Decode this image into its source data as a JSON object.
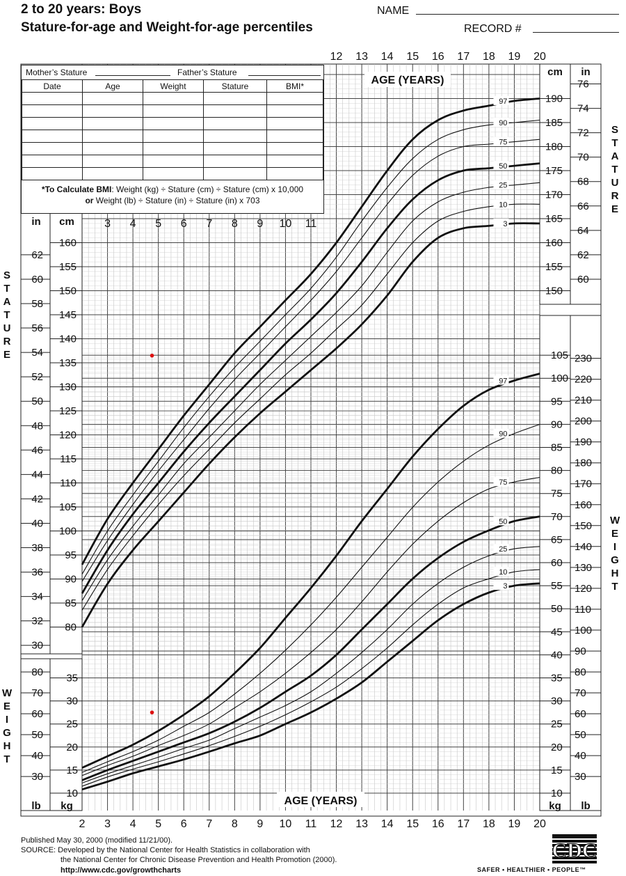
{
  "header": {
    "title_line1": "2 to 20 years: Boys",
    "title_line2": "Stature-for-age and Weight-for-age percentiles",
    "name_label": "NAME",
    "record_label": "RECORD #"
  },
  "record_table": {
    "mothers_stature": "Mother’s Stature",
    "fathers_stature": "Father’s Stature",
    "columns": [
      "Date",
      "Age",
      "Weight",
      "Stature",
      "BMI*"
    ],
    "bmi_line1_bold": "*To Calculate BMI",
    "bmi_line1_rest": ": Weight (kg) ÷ Stature (cm) ÷ Stature (cm) x 10,000",
    "bmi_line2_bold": "or",
    "bmi_line2_rest": " Weight (lb) ÷ Stature (in) ÷ Stature (in) x 703"
  },
  "side_labels": {
    "stature": "STATURE",
    "weight": "WEIGHT"
  },
  "footer": {
    "published": "Published May 30, 2000 (modified 11/21/00).",
    "source_line1": "SOURCE: Developed by the National Center for Health Statistics in collaboration with",
    "source_line2": "the National Center for Chronic Disease Prevention and Health Promotion (2000).",
    "url": "http://www.cdc.gov/growthcharts",
    "logo_text": "CDC",
    "slogan": "SAFER • HEALTHIER • PEOPLE™"
  },
  "chart_data": {
    "type": "line",
    "title": "Stature-for-age and Weight-for-age percentiles",
    "xlabel": "AGE (YEARS)",
    "x_ticks": [
      2,
      3,
      4,
      5,
      6,
      7,
      8,
      9,
      10,
      11,
      12,
      13,
      14,
      15,
      16,
      17,
      18,
      19,
      20
    ],
    "xlim": [
      2,
      20
    ],
    "grid": true,
    "unit_labels": {
      "in": "in",
      "cm": "cm",
      "lb": "lb",
      "kg": "kg"
    },
    "stature": {
      "ylabel": "STATURE",
      "unit": "cm",
      "ylim": [
        75,
        195
      ],
      "cm_ticks_left": [
        80,
        85,
        90,
        95,
        100,
        105,
        110,
        115,
        120,
        125,
        130,
        135,
        140,
        145,
        150,
        155,
        160
      ],
      "in_ticks_left": [
        30,
        32,
        34,
        36,
        38,
        40,
        42,
        44,
        46,
        48,
        50,
        52,
        54,
        56,
        58,
        60,
        62
      ],
      "cm_ticks_right": [
        150,
        155,
        160,
        165,
        170,
        175,
        180,
        185,
        190
      ],
      "in_ticks_right": [
        60,
        62,
        64,
        66,
        68,
        70,
        72,
        74,
        76
      ],
      "ages": [
        2,
        3,
        4,
        5,
        6,
        7,
        8,
        9,
        10,
        11,
        12,
        13,
        14,
        15,
        16,
        17,
        18,
        19,
        20
      ],
      "series": [
        {
          "name": "97",
          "bold": true,
          "values": [
            93,
            102.5,
            110,
            117,
            124,
            130.5,
            137,
            142.5,
            148,
            153.5,
            160,
            167.5,
            175,
            181.5,
            185.5,
            187.5,
            188.5,
            189.5,
            190
          ]
        },
        {
          "name": "90",
          "bold": false,
          "values": [
            91,
            100,
            107.5,
            114.5,
            121.5,
            128,
            134,
            139.5,
            145,
            150.5,
            157,
            164.5,
            171.5,
            177.5,
            181.5,
            183.5,
            184.5,
            185,
            185.5
          ]
        },
        {
          "name": "75",
          "bold": false,
          "values": [
            89.5,
            98,
            105.5,
            112.5,
            119,
            125.5,
            131.5,
            137,
            142.5,
            148,
            154,
            161,
            168,
            174,
            178,
            180,
            180.5,
            181,
            181.5
          ]
        },
        {
          "name": "50",
          "bold": true,
          "values": [
            87,
            96,
            103.5,
            110,
            116.5,
            122.5,
            128,
            133.5,
            139,
            144,
            149.5,
            156,
            163,
            169,
            173,
            175,
            175.5,
            176,
            176.5
          ]
        },
        {
          "name": "25",
          "bold": false,
          "values": [
            85.5,
            94,
            101,
            107.5,
            114,
            119.5,
            125,
            130.5,
            135.5,
            140.5,
            145.5,
            151,
            158,
            164.5,
            168.5,
            170.5,
            171.5,
            172,
            172.5
          ]
        },
        {
          "name": "10",
          "bold": false,
          "values": [
            83.5,
            92,
            99,
            105.5,
            111.5,
            117,
            122.5,
            127.5,
            132.5,
            137,
            142,
            147,
            153.5,
            160,
            164.5,
            166.5,
            167.5,
            168,
            168
          ]
        },
        {
          "name": "3",
          "bold": true,
          "values": [
            80,
            89,
            96,
            102,
            108,
            114,
            119.5,
            124.5,
            129,
            133.5,
            138,
            143,
            149,
            156,
            161,
            163,
            163.5,
            164,
            164
          ]
        }
      ],
      "measurement": {
        "age": 4.75,
        "value": 136.5
      }
    },
    "weight": {
      "ylabel": "WEIGHT",
      "unit": "kg",
      "ylim": [
        10,
        105
      ],
      "kg_ticks_left": [
        10,
        15,
        20,
        25,
        30,
        35
      ],
      "lb_ticks_left": [
        30,
        40,
        50,
        60,
        70,
        80
      ],
      "kg_ticks_right": [
        10,
        15,
        20,
        25,
        30,
        35,
        40,
        45,
        50,
        55,
        60,
        65,
        70,
        75,
        80,
        85,
        90,
        95,
        100,
        105
      ],
      "lb_ticks_right": [
        30,
        40,
        50,
        60,
        70,
        80,
        90,
        100,
        110,
        120,
        130,
        140,
        150,
        160,
        170,
        180,
        190,
        200,
        210,
        220,
        230
      ],
      "ages": [
        2,
        3,
        4,
        5,
        6,
        7,
        8,
        9,
        10,
        11,
        12,
        13,
        14,
        15,
        16,
        17,
        18,
        19,
        20
      ],
      "series": [
        {
          "name": "97",
          "bold": true,
          "values": [
            15.5,
            18,
            20.5,
            23.5,
            27,
            31,
            36,
            41.5,
            48,
            54.5,
            61.5,
            69,
            76,
            83,
            89,
            94,
            97.5,
            99.5,
            101
          ]
        },
        {
          "name": "90",
          "bold": false,
          "values": [
            14.5,
            16.8,
            19,
            21.5,
            24.5,
            27.5,
            31.5,
            36,
            41,
            46.5,
            52.5,
            59,
            65.5,
            72,
            77.5,
            82,
            85.5,
            88,
            90
          ]
        },
        {
          "name": "75",
          "bold": false,
          "values": [
            13.8,
            16,
            18,
            20.3,
            22.5,
            25,
            28.5,
            32,
            36,
            40.5,
            45.5,
            51.5,
            58,
            64,
            69,
            73,
            76,
            77.5,
            78.5
          ]
        },
        {
          "name": "50",
          "bold": true,
          "values": [
            12.8,
            15,
            17,
            19,
            21,
            23,
            25.5,
            28.5,
            32,
            35.5,
            40,
            45.5,
            51,
            56.5,
            61,
            64.5,
            67,
            69,
            70
          ]
        },
        {
          "name": "25",
          "bold": false,
          "values": [
            12.2,
            14.2,
            16,
            17.8,
            19.7,
            21.5,
            24,
            26.5,
            29,
            32,
            36,
            40.5,
            45.5,
            51,
            55.5,
            59,
            61.5,
            63,
            63.5
          ]
        },
        {
          "name": "10",
          "bold": false,
          "values": [
            11.5,
            13.5,
            15.2,
            16.8,
            18.5,
            20.3,
            22.3,
            24.5,
            27,
            29.8,
            33,
            37,
            41.5,
            46.5,
            51,
            54.5,
            56.5,
            58,
            58.5
          ]
        },
        {
          "name": "3",
          "bold": true,
          "values": [
            10.8,
            12.5,
            14.3,
            15.8,
            17.3,
            19,
            20.8,
            22.5,
            25,
            27.5,
            30.5,
            34,
            38.5,
            43,
            47.5,
            51,
            53.5,
            55,
            55.5
          ]
        }
      ],
      "measurement": {
        "age": 4.75,
        "value": 27.5
      }
    }
  }
}
